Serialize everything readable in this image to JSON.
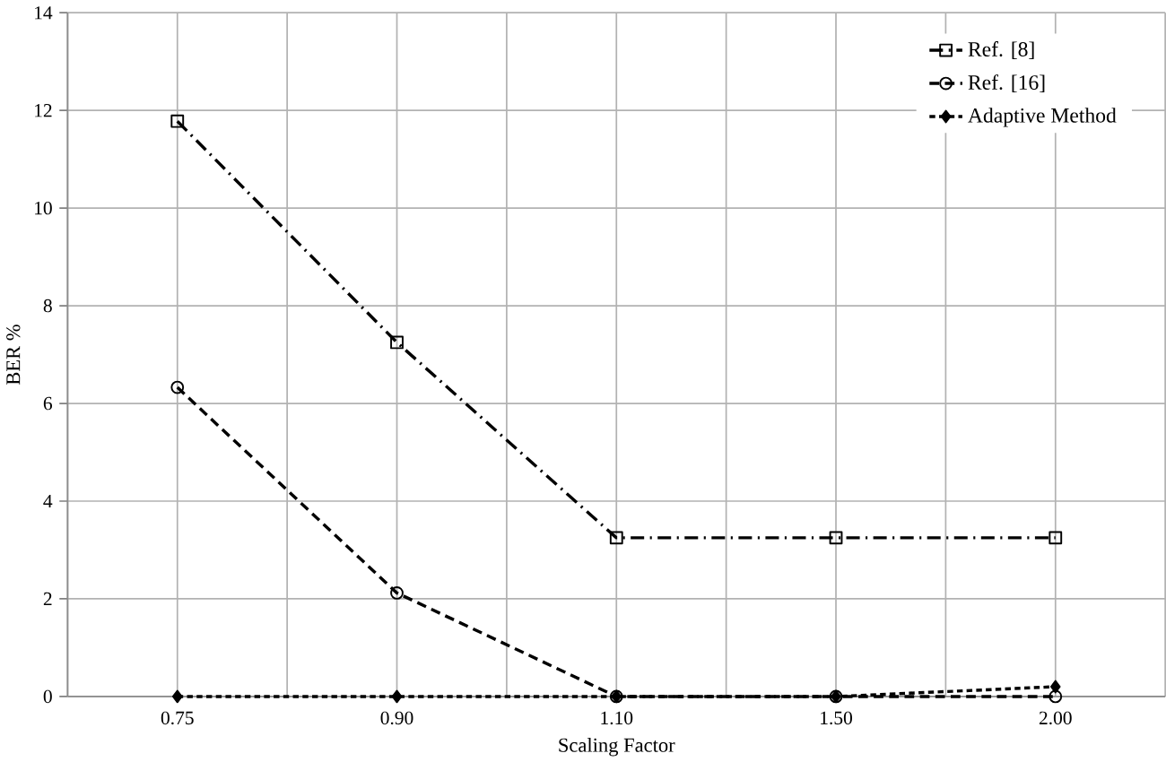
{
  "chart_data": {
    "type": "line",
    "xlabel": "Scaling Factor",
    "ylabel": "BER %",
    "categories": [
      "0.75",
      "0.90",
      "1.10",
      "1.50",
      "2.00"
    ],
    "series": [
      {
        "name": "Ref. [8]",
        "color": "#000000",
        "marker": "square",
        "line_style": "dashdot",
        "values": [
          11.78,
          7.25,
          3.25,
          3.25,
          3.25
        ]
      },
      {
        "name": "Ref. [16]",
        "color": "#000000",
        "marker": "circle",
        "line_style": "dashed",
        "values": [
          6.33,
          2.12,
          0,
          0,
          0
        ]
      },
      {
        "name": "Adaptive Method",
        "color": "#000000",
        "marker": "diamond",
        "line_style": "dotted",
        "values": [
          0,
          0,
          0,
          0,
          0.2
        ]
      }
    ],
    "ylim": [
      0,
      14
    ],
    "yticks": [
      0,
      2,
      4,
      6,
      8,
      10,
      12,
      14
    ],
    "grid": true,
    "legend": "top right"
  }
}
